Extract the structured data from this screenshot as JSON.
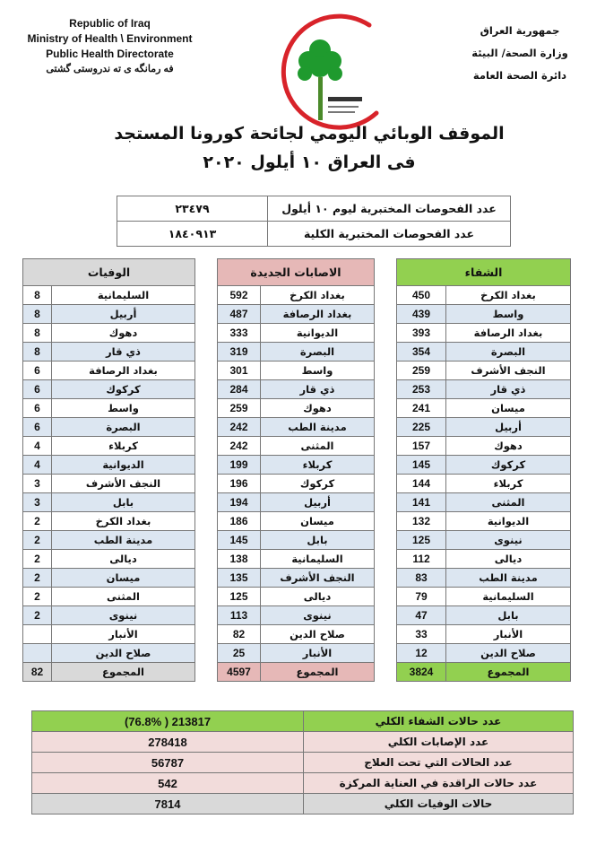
{
  "header": {
    "english": [
      "Republic of Iraq",
      "Ministry of Health \\ Environment",
      "Public Health Directorate",
      "فه رمانگه ی ته ندروستی گشتی"
    ],
    "arabic": [
      "جمهورية العراق",
      "وزارة الصحة/ البيئة",
      "دائرة الصحة العامة"
    ],
    "logo_text": "وزارة الصحة العراقية - Iraqi Ministry of Health"
  },
  "title": {
    "line1": "الموقف الوبائي اليومي لجائحة كورونا المستجد",
    "line2": "فى العراق  ١٠  أيلول ٢٠٢٠"
  },
  "tests": [
    {
      "label": "عدد الفحوصات المختبرية  ليوم ١٠ أيلول",
      "value": "٢٣٤٧٩"
    },
    {
      "label": "عدد الفحوصات المختبرية الكلية",
      "value": "١٨٤٠٩١٣"
    }
  ],
  "colors": {
    "recovery": "#92d050",
    "cases": "#e6b8b7",
    "deaths": "#d9d9d9",
    "alt_row": "#dce6f1",
    "summary_pink": "#f2dcdb"
  },
  "recovery": {
    "title": "الشفاء",
    "rows": [
      [
        "بغداد الكرخ",
        "450"
      ],
      [
        "واسط",
        "439"
      ],
      [
        "بغداد الرصافة",
        "393"
      ],
      [
        "البصرة",
        "354"
      ],
      [
        "النجف الأشرف",
        "259"
      ],
      [
        "ذي قار",
        "253"
      ],
      [
        "ميسان",
        "241"
      ],
      [
        "أربيل",
        "225"
      ],
      [
        "دهوك",
        "157"
      ],
      [
        "كركوك",
        "145"
      ],
      [
        "كربلاء",
        "144"
      ],
      [
        "المثنى",
        "141"
      ],
      [
        "الديوانية",
        "132"
      ],
      [
        "نينوى",
        "125"
      ],
      [
        "ديالى",
        "112"
      ],
      [
        "مدينة الطب",
        "83"
      ],
      [
        "السليمانية",
        "79"
      ],
      [
        "بابل",
        "47"
      ],
      [
        "الأنبار",
        "33"
      ],
      [
        "صلاح الدين",
        "12"
      ]
    ],
    "total_label": "المجموع",
    "total": "3824"
  },
  "cases": {
    "title": "الاصابات الجديدة",
    "rows": [
      [
        "بغداد الكرخ",
        "592"
      ],
      [
        "بغداد الرصافة",
        "487"
      ],
      [
        "الديوانية",
        "333"
      ],
      [
        "البصرة",
        "319"
      ],
      [
        "واسط",
        "301"
      ],
      [
        "ذي قار",
        "284"
      ],
      [
        "دهوك",
        "259"
      ],
      [
        "مدينة الطب",
        "242"
      ],
      [
        "المثنى",
        "242"
      ],
      [
        "كربلاء",
        "199"
      ],
      [
        "كركوك",
        "196"
      ],
      [
        "أربيل",
        "194"
      ],
      [
        "ميسان",
        "186"
      ],
      [
        "بابل",
        "145"
      ],
      [
        "السليمانية",
        "138"
      ],
      [
        "النجف الأشرف",
        "135"
      ],
      [
        "ديالى",
        "125"
      ],
      [
        "نينوى",
        "113"
      ],
      [
        "صلاح الدين",
        "82"
      ],
      [
        "الأنبار",
        "25"
      ]
    ],
    "total_label": "المجموع",
    "total": "4597"
  },
  "deaths": {
    "title": "الوفيات",
    "rows": [
      [
        "السليمانية",
        "8"
      ],
      [
        "أربيل",
        "8"
      ],
      [
        "دهوك",
        "8"
      ],
      [
        "ذي قار",
        "8"
      ],
      [
        "بغداد الرصافة",
        "6"
      ],
      [
        "كركوك",
        "6"
      ],
      [
        "واسط",
        "6"
      ],
      [
        "البصرة",
        "6"
      ],
      [
        "كربلاء",
        "4"
      ],
      [
        "الديوانية",
        "4"
      ],
      [
        "النجف الأشرف",
        "3"
      ],
      [
        "بابل",
        "3"
      ],
      [
        "بغداد الكرخ",
        "2"
      ],
      [
        "مدينة الطب",
        "2"
      ],
      [
        "ديالى",
        "2"
      ],
      [
        "ميسان",
        "2"
      ],
      [
        "المثنى",
        "2"
      ],
      [
        "نينوى",
        "2"
      ],
      [
        "الأنبار",
        ""
      ],
      [
        "صلاح الدين",
        ""
      ]
    ],
    "total_label": "المجموع",
    "total": "82"
  },
  "summary": [
    {
      "label": "عدد حالات الشفاء الكلي",
      "value": "(76.8% )   213817",
      "color": "#92d050"
    },
    {
      "label": "عدد الإصابات الكلي",
      "value": "278418",
      "color": "#f2dcdb"
    },
    {
      "label": "عدد الحالات التي تحت العلاج",
      "value": "56787",
      "color": "#f2dcdb"
    },
    {
      "label": "عدد حالات الراقدة في العناية المركزة",
      "value": "542",
      "color": "#f2dcdb"
    },
    {
      "label": "حالات الوفيات الكلي",
      "value": "7814",
      "color": "#d9d9d9"
    }
  ]
}
